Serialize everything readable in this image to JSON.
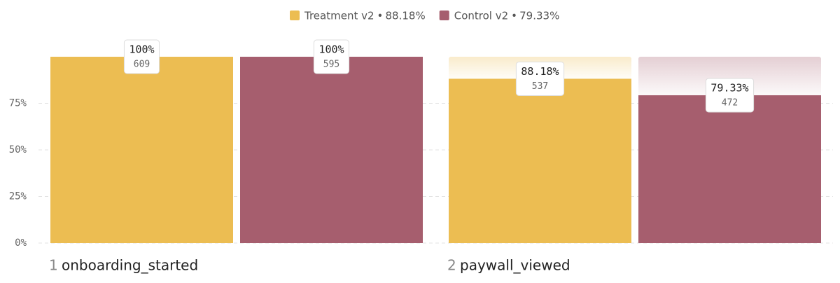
{
  "chart_data": {
    "type": "funnel-bar",
    "categories": [
      "onboarding_started",
      "paywall_viewed"
    ],
    "step_numbers": [
      1,
      2
    ],
    "series": [
      {
        "name": "Treatment v2",
        "color": "#ecbd52",
        "conversion": 88.18,
        "conversion_label": "88.18%",
        "values": [
          100,
          88.18
        ],
        "value_labels": [
          "100%",
          "88.18%"
        ],
        "counts": [
          609,
          537
        ]
      },
      {
        "name": "Control v2",
        "color": "#a65e6e",
        "conversion": 79.33,
        "conversion_label": "79.33%",
        "values": [
          100,
          79.33
        ],
        "value_labels": [
          "100%",
          "79.33%"
        ],
        "counts": [
          595,
          472
        ]
      }
    ],
    "ylim": [
      0,
      100
    ],
    "yticks": [
      {
        "value": 0,
        "label": "0%"
      },
      {
        "value": 25,
        "label": "25%"
      },
      {
        "value": 50,
        "label": "50%"
      },
      {
        "value": 75,
        "label": "75%"
      }
    ],
    "grid": true
  }
}
